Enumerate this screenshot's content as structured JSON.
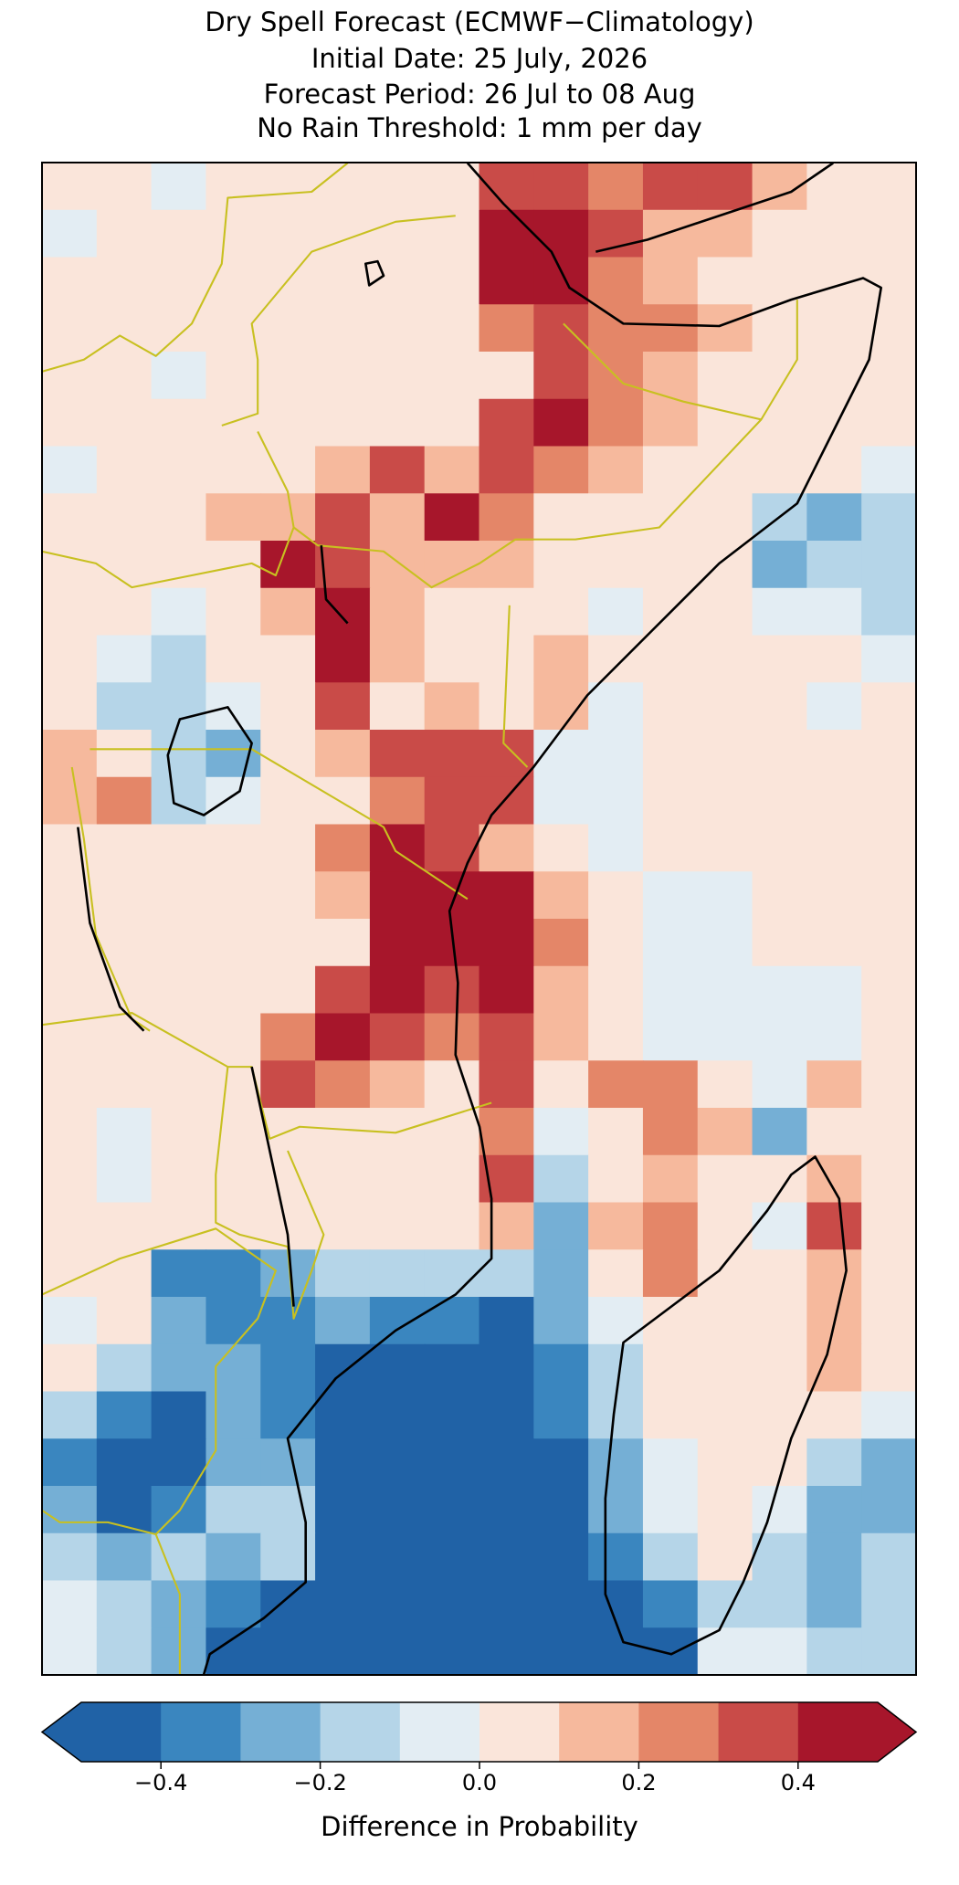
{
  "chart_data": {
    "type": "heatmap",
    "title": [
      "Dry Spell Forecast (ECMWF−Climatology)",
      "Initial Date: 25 July, 2026",
      "Forecast Period: 26 Jul to 08 Aug",
      "No Rain Threshold: 1 mm per day"
    ],
    "colorbar_label": "Difference in Probability",
    "clim": [
      -0.5,
      0.5
    ],
    "levels": [
      -0.5,
      -0.4,
      -0.3,
      -0.2,
      -0.1,
      0,
      0.1,
      0.2,
      0.3,
      0.4,
      0.5
    ],
    "colors": [
      "#2062a6",
      "#3a86bf",
      "#75afd5",
      "#b5d5e8",
      "#e3edf3",
      "#fae5da",
      "#f6b99d",
      "#e48668",
      "#c94b48",
      "#a7162b"
    ],
    "extend": "both",
    "cticks": [
      {
        "value": -0.4,
        "label": "−0.4"
      },
      {
        "value": -0.2,
        "label": "−0.2"
      },
      {
        "value": 0,
        "label": "0.0"
      },
      0.2,
      0.4
    ],
    "values": [
      [
        0.05,
        0.05,
        -0.05,
        0.05,
        0.05,
        0.05,
        0.05,
        0.05,
        0.35,
        0.35,
        0.25,
        0.35,
        0.35,
        0.15,
        0.05,
        0.05
      ],
      [
        -0.05,
        0.05,
        0.05,
        0.05,
        0.05,
        0.05,
        0.05,
        0.05,
        0.45,
        0.45,
        0.35,
        0.15,
        0.15,
        0.05,
        0.05,
        0.05
      ],
      [
        0.05,
        0.05,
        0.05,
        0.05,
        0.05,
        0.05,
        0.05,
        0.05,
        0.45,
        0.45,
        0.25,
        0.15,
        0.05,
        0.05,
        0.05,
        0.05
      ],
      [
        0.05,
        0.05,
        0.05,
        0.05,
        0.05,
        0.05,
        0.05,
        0.05,
        0.25,
        0.35,
        0.25,
        0.25,
        0.15,
        0.05,
        0.05,
        0.05
      ],
      [
        0.05,
        0.05,
        -0.05,
        0.05,
        0.05,
        0.05,
        0.05,
        0.05,
        0.05,
        0.35,
        0.25,
        0.15,
        0.05,
        0.05,
        0.05,
        0.05
      ],
      [
        0.05,
        0.05,
        0.05,
        0.05,
        0.05,
        0.05,
        0.05,
        0.05,
        0.35,
        0.45,
        0.25,
        0.15,
        0.05,
        0.05,
        0.05,
        0.05
      ],
      [
        -0.05,
        0.05,
        0.05,
        0.05,
        0.05,
        0.15,
        0.35,
        0.15,
        0.35,
        0.25,
        0.15,
        0.05,
        0.05,
        0.05,
        0.05,
        -0.05
      ],
      [
        0.05,
        0.05,
        0.05,
        0.15,
        0.15,
        0.35,
        0.15,
        0.45,
        0.25,
        0.05,
        0.05,
        0.05,
        0.05,
        -0.15,
        -0.25,
        -0.15
      ],
      [
        0.05,
        0.05,
        0.05,
        0.05,
        0.45,
        0.35,
        0.15,
        0.15,
        0.15,
        0.05,
        0.05,
        0.05,
        0.05,
        -0.25,
        -0.15,
        -0.15
      ],
      [
        0.05,
        0.05,
        -0.05,
        0.05,
        0.15,
        0.45,
        0.15,
        0.05,
        0.05,
        0.05,
        -0.05,
        0.05,
        0.05,
        -0.05,
        -0.05,
        -0.15
      ],
      [
        0.05,
        -0.05,
        -0.15,
        0.05,
        0.05,
        0.45,
        0.15,
        0.05,
        0.05,
        0.15,
        0.05,
        0.05,
        0.05,
        0.05,
        0.05,
        -0.05
      ],
      [
        0.05,
        -0.15,
        -0.15,
        -0.05,
        0.05,
        0.35,
        0.05,
        0.15,
        0.05,
        0.15,
        -0.05,
        0.05,
        0.05,
        0.05,
        -0.05,
        0.05
      ],
      [
        0.15,
        0.05,
        -0.15,
        -0.25,
        0.05,
        0.15,
        0.35,
        0.35,
        0.35,
        -0.05,
        -0.05,
        0.05,
        0.05,
        0.05,
        0.05,
        0.05
      ],
      [
        0.15,
        0.25,
        -0.15,
        -0.05,
        0.05,
        0.05,
        0.25,
        0.35,
        0.35,
        -0.05,
        -0.05,
        0.05,
        0.05,
        0.05,
        0.05,
        0.05
      ],
      [
        0.05,
        0.05,
        0.05,
        0.05,
        0.05,
        0.25,
        0.45,
        0.35,
        0.15,
        0.05,
        -0.05,
        0.05,
        0.05,
        0.05,
        0.05,
        0.05
      ],
      [
        0.05,
        0.05,
        0.05,
        0.05,
        0.05,
        0.15,
        0.45,
        0.45,
        0.45,
        0.15,
        0.05,
        -0.05,
        -0.05,
        0.05,
        0.05,
        0.05
      ],
      [
        0.05,
        0.05,
        0.05,
        0.05,
        0.05,
        0.05,
        0.45,
        0.45,
        0.45,
        0.25,
        0.05,
        -0.05,
        -0.05,
        0.05,
        0.05,
        0.05
      ],
      [
        0.05,
        0.05,
        0.05,
        0.05,
        0.05,
        0.35,
        0.45,
        0.35,
        0.45,
        0.15,
        0.05,
        -0.05,
        -0.05,
        -0.05,
        -0.05,
        0.05
      ],
      [
        0.05,
        0.05,
        0.05,
        0.05,
        0.25,
        0.45,
        0.35,
        0.25,
        0.35,
        0.15,
        0.05,
        -0.05,
        -0.05,
        -0.05,
        -0.05,
        0.05
      ],
      [
        0.05,
        0.05,
        0.05,
        0.05,
        0.35,
        0.25,
        0.15,
        0.05,
        0.35,
        0.05,
        0.25,
        0.25,
        0.05,
        -0.05,
        0.15,
        0.05
      ],
      [
        0.05,
        -0.05,
        0.05,
        0.05,
        0.05,
        0.05,
        0.05,
        0.05,
        0.25,
        -0.05,
        0.05,
        0.25,
        0.15,
        -0.25,
        0.05,
        0.05
      ],
      [
        0.05,
        -0.05,
        0.05,
        0.05,
        0.05,
        0.05,
        0.05,
        0.05,
        0.35,
        -0.15,
        0.05,
        0.15,
        0.05,
        0.05,
        0.15,
        0.05
      ],
      [
        0.05,
        0.05,
        0.05,
        0.05,
        0.05,
        0.05,
        0.05,
        0.05,
        0.15,
        -0.25,
        0.15,
        0.25,
        0.05,
        -0.05,
        0.35,
        0.05
      ],
      [
        0.05,
        0.05,
        -0.35,
        -0.35,
        -0.25,
        -0.15,
        -0.15,
        -0.15,
        -0.15,
        -0.25,
        0.05,
        0.25,
        0.05,
        0.05,
        0.15,
        0.05
      ],
      [
        -0.05,
        0.05,
        -0.25,
        -0.35,
        -0.35,
        -0.25,
        -0.35,
        -0.35,
        -0.45,
        -0.25,
        -0.05,
        0.05,
        0.05,
        0.05,
        0.15,
        0.05
      ],
      [
        0.05,
        -0.15,
        -0.25,
        -0.25,
        -0.35,
        -0.45,
        -0.45,
        -0.45,
        -0.45,
        -0.35,
        -0.15,
        0.05,
        0.05,
        0.05,
        0.15,
        0.05
      ],
      [
        -0.15,
        -0.35,
        -0.45,
        -0.25,
        -0.35,
        -0.45,
        -0.45,
        -0.45,
        -0.45,
        -0.35,
        -0.15,
        0.05,
        0.05,
        0.05,
        0.05,
        -0.05
      ],
      [
        -0.35,
        -0.45,
        -0.45,
        -0.25,
        -0.25,
        -0.45,
        -0.45,
        -0.45,
        -0.45,
        -0.45,
        -0.25,
        -0.05,
        0.05,
        0.05,
        -0.15,
        -0.25
      ],
      [
        -0.25,
        -0.45,
        -0.35,
        -0.15,
        -0.15,
        -0.45,
        -0.45,
        -0.45,
        -0.45,
        -0.45,
        -0.25,
        -0.05,
        0.05,
        -0.05,
        -0.25,
        -0.25
      ],
      [
        -0.15,
        -0.25,
        -0.15,
        -0.25,
        -0.15,
        -0.45,
        -0.45,
        -0.45,
        -0.45,
        -0.45,
        -0.35,
        -0.15,
        0.05,
        -0.15,
        -0.25,
        -0.15
      ],
      [
        -0.05,
        -0.15,
        -0.25,
        -0.35,
        -0.45,
        -0.45,
        -0.45,
        -0.45,
        -0.45,
        -0.45,
        -0.45,
        -0.35,
        -0.15,
        -0.15,
        -0.25,
        -0.15
      ],
      [
        -0.05,
        -0.15,
        -0.25,
        -0.45,
        -0.45,
        -0.45,
        -0.45,
        -0.45,
        -0.45,
        -0.45,
        -0.45,
        -0.45,
        -0.05,
        -0.05,
        -0.15,
        -0.15
      ]
    ]
  }
}
